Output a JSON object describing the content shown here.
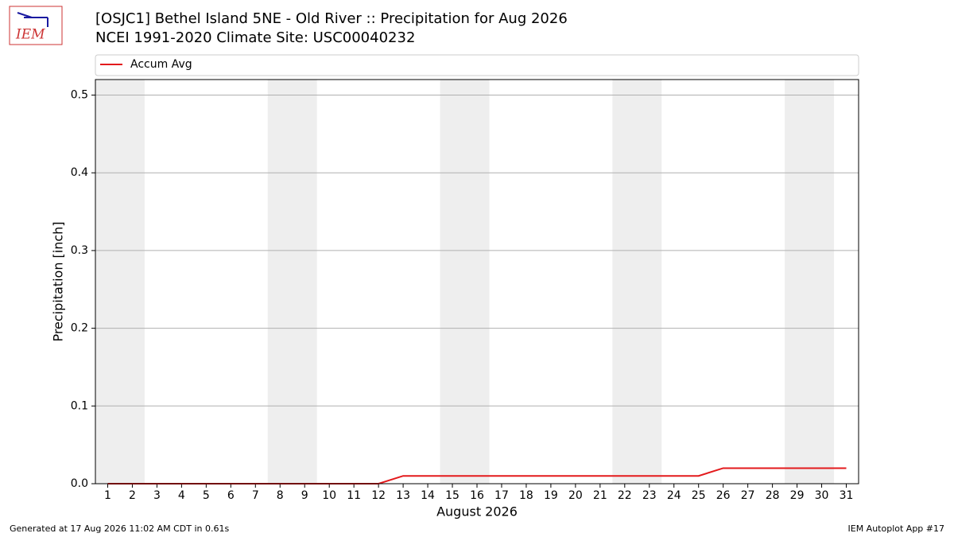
{
  "chart_data": {
    "type": "line",
    "title": "[OSJC1] Bethel Island 5NE - Old River :: Precipitation for Aug 2026",
    "subtitle": "NCEI 1991-2020 Climate Site: USC00040232",
    "x_label": "August 2026",
    "y_label": "Precipitation [inch]",
    "x": [
      1,
      2,
      3,
      4,
      5,
      6,
      7,
      8,
      9,
      10,
      11,
      12,
      13,
      14,
      15,
      16,
      17,
      18,
      19,
      20,
      21,
      22,
      23,
      24,
      25,
      26,
      27,
      28,
      29,
      30,
      31
    ],
    "series": [
      {
        "name": "Accum Avg",
        "color": "#e31a1c",
        "values": [
          0,
          0,
          0,
          0,
          0,
          0,
          0,
          0,
          0,
          0,
          0,
          0,
          0.01,
          0.01,
          0.01,
          0.01,
          0.01,
          0.01,
          0.01,
          0.01,
          0.01,
          0.01,
          0.01,
          0.01,
          0.01,
          0.02,
          0.02,
          0.02,
          0.02,
          0.02,
          0.02
        ]
      }
    ],
    "shaded_spans": [
      [
        0.5,
        2.5
      ],
      [
        7.5,
        9.5
      ],
      [
        14.5,
        16.5
      ],
      [
        21.5,
        23.5
      ],
      [
        28.5,
        30.5
      ]
    ],
    "xlim": [
      0.5,
      31.5
    ],
    "xticks": [
      1,
      2,
      3,
      4,
      5,
      6,
      7,
      8,
      9,
      10,
      11,
      12,
      13,
      14,
      15,
      16,
      17,
      18,
      19,
      20,
      21,
      22,
      23,
      24,
      25,
      26,
      27,
      28,
      29,
      30,
      31
    ],
    "ylim": [
      0,
      0.52
    ],
    "yticks": [
      {
        "value": 0,
        "label": "0.0"
      },
      {
        "value": 0.1,
        "label": "0.1"
      },
      {
        "value": 0.2,
        "label": "0.2"
      },
      {
        "value": 0.3,
        "label": "0.3"
      },
      {
        "value": 0.4,
        "label": "0.4"
      },
      {
        "value": 0.5,
        "label": "0.5"
      }
    ],
    "grid": true,
    "legend": "top",
    "logo_text": "IEM",
    "footer_left": "Generated at 17 Aug 2026 11:02 AM CDT in 0.61s",
    "footer_right": "IEM Autoplot App #17"
  }
}
